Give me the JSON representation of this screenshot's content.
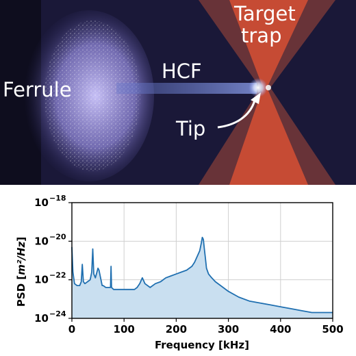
{
  "photo": {
    "labels": {
      "ferrule": "Ferrule",
      "hcf": "HCF",
      "target_trap_line1": "Target",
      "target_trap_line2": "trap",
      "tip": "Tip"
    },
    "colors": {
      "background": "#1a1838",
      "ferrule_glow": "#b0a8f0",
      "trap_beam": "#e2553a",
      "fiber": "#6f86d8"
    }
  },
  "chart_data": {
    "type": "area",
    "xlabel": "Frequency [kHz]",
    "ylabel_main": "PSD [",
    "ylabel_unit": "m²/Hz",
    "ylabel_close": "]",
    "xlim": [
      0,
      500
    ],
    "ylim_log10": [
      -24,
      -18
    ],
    "yscale": "log",
    "grid": true,
    "x_ticks": [
      0,
      100,
      200,
      300,
      400,
      500
    ],
    "y_ticks": [
      {
        "exp": -24,
        "label": "10",
        "sup": "−24"
      },
      {
        "exp": -22,
        "label": "10",
        "sup": "−22"
      },
      {
        "exp": -20,
        "label": "10",
        "sup": "−20"
      },
      {
        "exp": -18,
        "label": "10",
        "sup": "−18"
      }
    ],
    "line_color": "#1f6fb0",
    "fill_color": "#c9dff0",
    "series": [
      {
        "x": [
          0,
          2,
          5,
          10,
          15,
          18,
          20,
          22,
          25,
          30,
          35,
          38,
          40,
          42,
          45,
          48,
          50,
          52,
          55,
          58,
          60,
          65,
          70,
          74,
          75,
          76,
          80,
          90,
          100,
          110,
          120,
          125,
          130,
          135,
          140,
          150,
          160,
          170,
          180,
          190,
          200,
          210,
          220,
          230,
          235,
          240,
          245,
          248,
          250,
          252,
          254,
          256,
          258,
          262,
          268,
          275,
          285,
          300,
          320,
          340,
          360,
          380,
          400,
          420,
          440,
          460,
          480,
          500
        ],
        "log10_psd": [
          -20.3,
          -21.6,
          -22.2,
          -22.3,
          -22.3,
          -22.1,
          -21.2,
          -22.1,
          -22.2,
          -22.1,
          -22.0,
          -21.6,
          -20.4,
          -21.7,
          -21.9,
          -21.6,
          -21.4,
          -21.5,
          -21.9,
          -22.3,
          -22.3,
          -22.4,
          -22.4,
          -22.4,
          -21.3,
          -22.4,
          -22.5,
          -22.5,
          -22.5,
          -22.5,
          -22.5,
          -22.4,
          -22.2,
          -21.9,
          -22.2,
          -22.4,
          -22.2,
          -22.1,
          -21.9,
          -21.8,
          -21.7,
          -21.6,
          -21.5,
          -21.3,
          -21.1,
          -20.8,
          -20.5,
          -20.1,
          -19.8,
          -19.9,
          -20.4,
          -20.9,
          -21.4,
          -21.7,
          -21.9,
          -22.1,
          -22.3,
          -22.6,
          -22.9,
          -23.1,
          -23.2,
          -23.3,
          -23.4,
          -23.5,
          -23.6,
          -23.7,
          -23.7,
          -23.7
        ]
      }
    ]
  }
}
